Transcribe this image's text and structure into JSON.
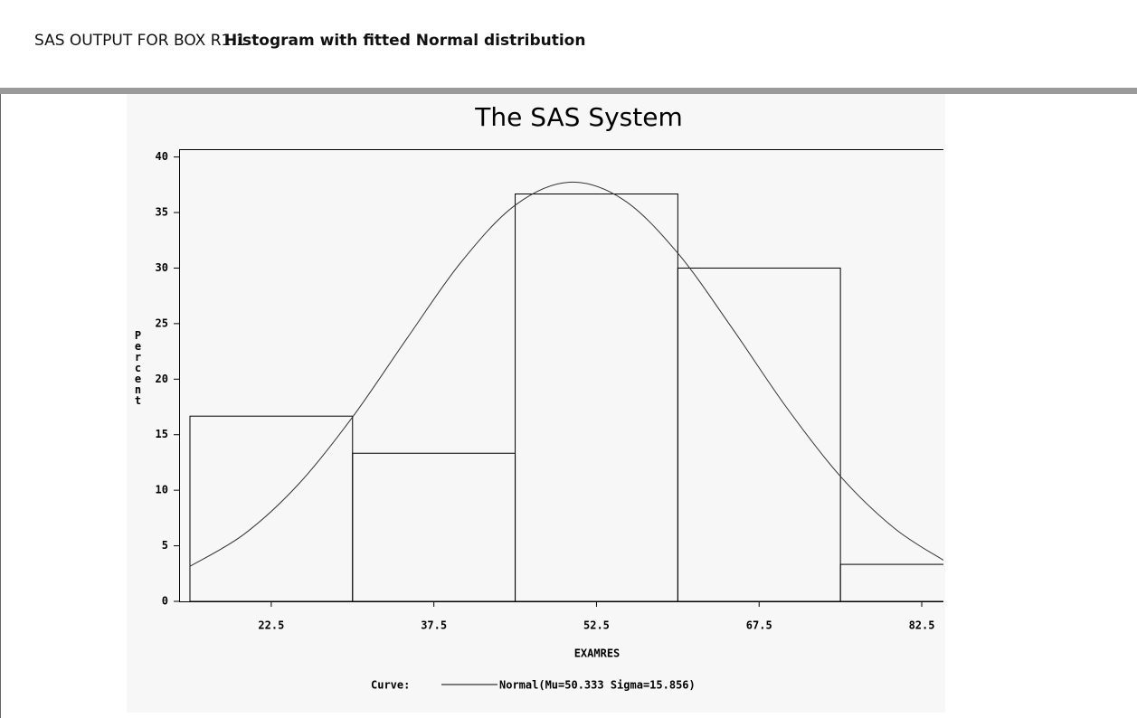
{
  "header": {
    "label": "SAS OUTPUT FOR BOX R1.1",
    "title": "Histogram with fitted Normal distribution"
  },
  "chart_data": {
    "type": "histogram",
    "title": "The SAS System",
    "x_label": "EXAMRES",
    "y_label": "Percent",
    "bins": [
      15,
      30,
      45,
      60,
      75,
      90
    ],
    "values": [
      16.67,
      13.33,
      36.67,
      30,
      3.33
    ],
    "xlim": [
      14,
      84.5
    ],
    "ylim": [
      0,
      40.7
    ],
    "xticks": [
      22.5,
      37.5,
      52.5,
      67.5,
      82.5
    ],
    "yticks": [
      0,
      5,
      10,
      15,
      20,
      25,
      30,
      35,
      40
    ],
    "legend_title": "Curve:",
    "curve": {
      "name": "Normal(Mu=50.333 Sigma=15.856)",
      "x": [
        15,
        20,
        25,
        30,
        35,
        40,
        45,
        50,
        55,
        60,
        65,
        70,
        75,
        80,
        84.5
      ],
      "y": [
        3.15,
        6.05,
        10.53,
        16.59,
        23.64,
        30.52,
        35.66,
        37.73,
        36.14,
        31.34,
        24.61,
        17.49,
        11.25,
        6.56,
        3.7
      ]
    }
  }
}
